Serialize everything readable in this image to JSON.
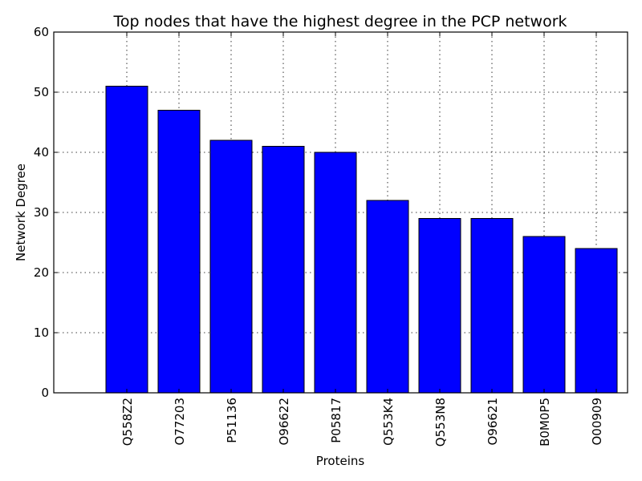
{
  "chart_data": {
    "type": "bar",
    "title": "Top nodes that have the highest degree in the PCP network",
    "xlabel": "Proteins",
    "ylabel": "Network Degree",
    "categories": [
      "Q558Z2",
      "O77203",
      "P51136",
      "O96622",
      "P05817",
      "Q553K4",
      "Q553N8",
      "O96621",
      "B0M0P5",
      "O00909"
    ],
    "values": [
      51,
      47,
      42,
      41,
      40,
      32,
      29,
      29,
      26,
      24
    ],
    "ylim": [
      0,
      60
    ],
    "yticks": [
      0,
      10,
      20,
      30,
      40,
      50,
      60
    ],
    "grid": true,
    "bar_color": "#0000ff"
  }
}
